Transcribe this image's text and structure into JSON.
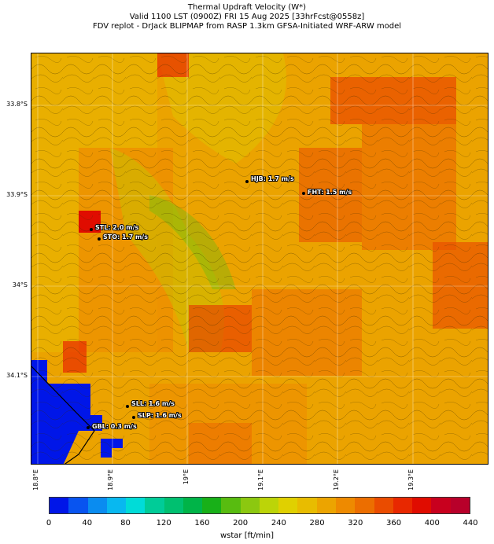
{
  "title": {
    "line1": "Thermal Updraft Velocity (W*)",
    "line2": "Valid 1100 LST (0900Z) FRI 15 Aug 2025 [33hrFcst@0558z]",
    "line3": "FDV replot - DrJack BLIPMAP from RASP 1.3km GFSA-Initiated WRF-ARW model"
  },
  "axes": {
    "lat_labels": [
      "33.8°S",
      "33.9°S",
      "34°S",
      "34.1°S"
    ],
    "lon_labels": [
      "18.8°E",
      "18.9°E",
      "19°E",
      "19.1°E",
      "19.2°E",
      "19.3°E"
    ]
  },
  "stations": [
    {
      "label": "HJB: 1.7 m/s"
    },
    {
      "label": "FHT: 1.5 m/s"
    },
    {
      "label": "STL: 2.0 m/s"
    },
    {
      "label": "STO: 1.7 m/s"
    },
    {
      "label": "SLL: 1.6 m/s"
    },
    {
      "label": "SLP: 1.6 m/s"
    },
    {
      "label": "GBL: 0.3 m/s"
    }
  ],
  "colorbar": {
    "ticks": [
      "0",
      "40",
      "80",
      "120",
      "160",
      "200",
      "240",
      "280",
      "320",
      "360",
      "400",
      "440"
    ],
    "label": "wstar [ft/min]",
    "colors": [
      "#0016e8",
      "#0854f0",
      "#0a8cf0",
      "#08b8f0",
      "#00dcd8",
      "#00cc98",
      "#00c070",
      "#00b448",
      "#18b018",
      "#58bc10",
      "#8cc810",
      "#bcd408",
      "#e0d000",
      "#e8bc00",
      "#eca400",
      "#ee8a00",
      "#ec6e00",
      "#ea4c00",
      "#e82800",
      "#e00c00",
      "#c8001e",
      "#b8002a"
    ]
  }
}
